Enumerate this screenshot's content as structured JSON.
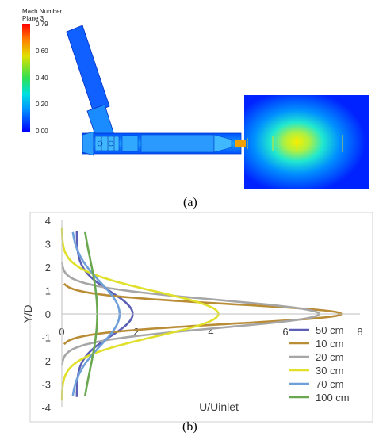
{
  "panel_a": {
    "colorbar": {
      "title_line1": "Mach Number",
      "title_line2": "Plane 3",
      "ticks": [
        "0.79",
        "0.60",
        "0.40",
        "0.20",
        "0.00"
      ],
      "min": 0.0,
      "max": 0.79,
      "colors": [
        "#0000ff",
        "#00a0ff",
        "#00e0d0",
        "#40e040",
        "#d0e000",
        "#ff8000",
        "#ff0000"
      ]
    },
    "caption": "(a)"
  },
  "panel_b": {
    "caption": "(b)"
  },
  "chart_data": {
    "type": "line",
    "xlabel": "U/Uinlet",
    "ylabel": "Y/D",
    "xlim": [
      0,
      8
    ],
    "ylim": [
      -4,
      4
    ],
    "xticks": [
      "0",
      "2",
      "4",
      "6",
      "8"
    ],
    "yticks": [
      "4",
      "3",
      "2",
      "1",
      "0",
      "-1",
      "-2",
      "-3",
      "-4"
    ],
    "grid": false,
    "legend_position": "bottom-right",
    "series": [
      {
        "name": "50 cm",
        "color": "#5b5fb5",
        "peak": 1.9,
        "base": 0.4,
        "sigma": 0.95,
        "range": [
          -3.55,
          3.55
        ]
      },
      {
        "name": "10 cm",
        "color": "#b98c36",
        "peak": 7.5,
        "base": 0.0,
        "sigma": 0.42,
        "range": [
          -1.3,
          1.3
        ]
      },
      {
        "name": "20 cm",
        "color": "#a6a6a6",
        "peak": 6.9,
        "base": 0.0,
        "sigma": 0.6,
        "range": [
          -2.2,
          2.2
        ]
      },
      {
        "name": "30 cm",
        "color": "#e0e02a",
        "peak": 4.2,
        "base": 0.0,
        "sigma": 0.95,
        "range": [
          -3.7,
          3.7
        ]
      },
      {
        "name": "70 cm",
        "color": "#6f9fd8",
        "peak": 1.55,
        "base": 0.25,
        "sigma": 1.35,
        "range": [
          -3.5,
          3.5
        ]
      },
      {
        "name": "100 cm",
        "color": "#6aa84f",
        "peak": 0.95,
        "base": 0.45,
        "sigma": 2.4,
        "range": [
          -3.5,
          3.5
        ]
      }
    ]
  }
}
